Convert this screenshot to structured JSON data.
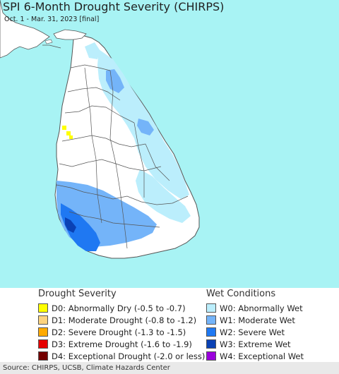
{
  "header": {
    "title": "SPI 6-Month Drought Severity (CHIRPS)",
    "subtitle": "Oct. 1 - Mar. 31, 2023 [final]"
  },
  "colors": {
    "ocean": "#a8f3f4",
    "land": "#ffffff",
    "border": "#555555"
  },
  "legend": {
    "drought": {
      "heading": "Drought Severity",
      "items": [
        {
          "label": "D0: Abnormally Dry (-0.5 to -0.7)",
          "color": "#ffff00"
        },
        {
          "label": "D1: Moderate Drought (-0.8 to -1.2)",
          "color": "#fcd37f"
        },
        {
          "label": "D2: Severe Drought (-1.3 to -1.5)",
          "color": "#ffaa00"
        },
        {
          "label": "D3: Extreme Drought (-1.6 to -1.9)",
          "color": "#e60000"
        },
        {
          "label": "D4: Exceptional Drought (-2.0 or less)",
          "color": "#730000"
        }
      ]
    },
    "wet": {
      "heading": "Wet Conditions",
      "items": [
        {
          "label": "W0: Abnormally Wet",
          "color": "#bbeefc"
        },
        {
          "label": "W1: Moderate Wet",
          "color": "#74b4f9"
        },
        {
          "label": "W2: Severe Wet",
          "color": "#1f78f2"
        },
        {
          "label": "W3: Extreme Wet",
          "color": "#0a41b4"
        },
        {
          "label": "W4: Exceptional Wet",
          "color": "#9a00dc"
        }
      ]
    }
  },
  "footer": {
    "source": "Source: CHIRPS, UCSB, Climate Hazards Center"
  }
}
